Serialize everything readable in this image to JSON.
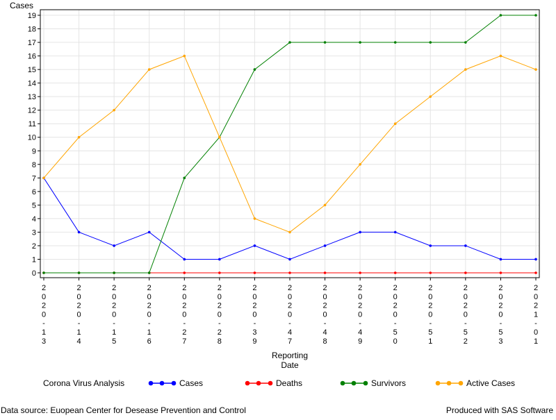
{
  "chart_data": {
    "type": "line",
    "ylabel": "Cases",
    "xlabel": "Reporting\nDate",
    "x": [
      "2020-13",
      "2020-14",
      "2020-15",
      "2020-16",
      "2020-27",
      "2020-28",
      "2020-39",
      "2020-47",
      "2020-48",
      "2020-49",
      "2020-50",
      "2020-51",
      "2020-52",
      "2020-53",
      "2021-01"
    ],
    "x_tick_labels": [
      "2020-13",
      "2020-14",
      "2020-15",
      "2020-16",
      "2020-27",
      "2020-28",
      "2020-39",
      "2020-47",
      "2020-48",
      "2020-49",
      "2020-50",
      "2020-51",
      "2020-52",
      "2020-53",
      "2021-01"
    ],
    "ylim": [
      0,
      19
    ],
    "yticks": [
      0,
      1,
      2,
      3,
      4,
      5,
      6,
      7,
      8,
      9,
      10,
      11,
      12,
      13,
      14,
      15,
      16,
      17,
      18,
      19
    ],
    "grid": true,
    "legend_title": "Corona Virus Analysis",
    "legend_position": "bottom",
    "series": [
      {
        "name": "Cases",
        "color": "#0000ff",
        "values": [
          7,
          3,
          2,
          3,
          1,
          1,
          2,
          1,
          2,
          3,
          3,
          2,
          2,
          1,
          1
        ]
      },
      {
        "name": "Deaths",
        "color": "#ff0000",
        "values": [
          0,
          0,
          0,
          0,
          0,
          0,
          0,
          0,
          0,
          0,
          0,
          0,
          0,
          0,
          0
        ]
      },
      {
        "name": "Survivors",
        "color": "#008000",
        "values": [
          0,
          0,
          0,
          0,
          7,
          10,
          15,
          17,
          17,
          17,
          17,
          17,
          17,
          19,
          19
        ]
      },
      {
        "name": "Active Cases",
        "color": "#ffa500",
        "values": [
          7,
          10,
          12,
          15,
          16,
          10,
          4,
          3,
          5,
          8,
          11,
          13,
          15,
          16,
          15
        ]
      }
    ]
  },
  "footnotes": {
    "left": "Data source: Euopean Center for Desease Prevention and Control",
    "right": "Produced with SAS Software"
  }
}
